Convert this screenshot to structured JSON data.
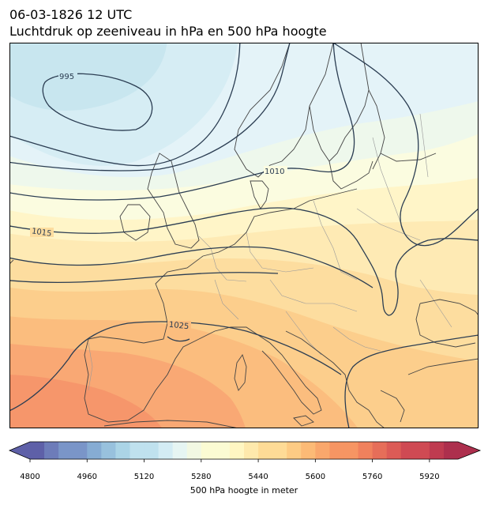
{
  "title": {
    "line1": "06-03-1826 12 UTC",
    "line2": "Luchtdruk op zeeniveau in hPa en 500 hPa hoogte"
  },
  "map": {
    "region": "Europe and North Atlantic",
    "isobar_labels": [
      {
        "id": "iso-995",
        "text": "995"
      },
      {
        "id": "iso-1010",
        "text": "1010"
      },
      {
        "id": "iso-1015",
        "text": "1015"
      },
      {
        "id": "iso-1025",
        "text": "1025"
      }
    ],
    "isobar_color": "#2b3d52",
    "coast_color": "#444444",
    "border_color": "#9a9a9a"
  },
  "colorbar": {
    "label": "500 hPa hoogte in meter",
    "min": 4800,
    "max": 6000,
    "step": 40,
    "ticks": [
      "4800",
      "4960",
      "5120",
      "5280",
      "5440",
      "5600",
      "5760",
      "5920"
    ],
    "extend": "both",
    "colormap": "RdYlBu_r"
  }
}
